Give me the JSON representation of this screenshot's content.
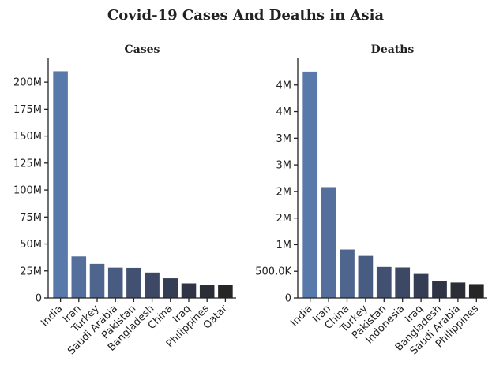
{
  "figure": {
    "title": "Covid-19 Cases And Deaths in Asia"
  },
  "chart_data": [
    {
      "type": "bar",
      "title": "Cases",
      "xlabel": "",
      "ylabel": "",
      "categories": [
        "India",
        "Iran",
        "Turkey",
        "Saudi Arabia",
        "Pakistan",
        "Bangladesh",
        "China",
        "Iraq",
        "Philippines",
        "Qatar"
      ],
      "values": [
        210000000,
        38500000,
        31500000,
        28000000,
        27800000,
        23500000,
        18200000,
        13500000,
        12000000,
        12000000
      ],
      "ylim": [
        0,
        222000000
      ],
      "yticks": [
        0,
        25000000,
        50000000,
        75000000,
        100000000,
        125000000,
        150000000,
        175000000,
        200000000
      ],
      "ytick_labels": [
        "0",
        "25M",
        "50M",
        "75M",
        "100M",
        "125M",
        "150M",
        "175M",
        "200M"
      ],
      "colors": [
        "#5a79ab",
        "#546f9c",
        "#4e658e",
        "#485b80",
        "#425172",
        "#3c4864",
        "#363e56",
        "#303447",
        "#2b2d37",
        "#262626"
      ],
      "grid": false,
      "legend": "none"
    },
    {
      "type": "bar",
      "title": "Deaths",
      "xlabel": "",
      "ylabel": "",
      "categories": [
        "India",
        "Iran",
        "China",
        "Turkey",
        "Pakistan",
        "Indonesia",
        "Iraq",
        "Bangladesh",
        "Saudi Arabia",
        "Philippines"
      ],
      "values": [
        4250000,
        2080000,
        910000,
        790000,
        580000,
        570000,
        450000,
        320000,
        290000,
        260000
      ],
      "ylim": [
        0,
        4500000
      ],
      "yticks": [
        0,
        500000,
        1000000,
        1500000,
        2000000,
        2500000,
        3000000,
        3500000,
        4000000
      ],
      "ytick_labels": [
        "0",
        "500.0K",
        "1M",
        "2M",
        "2M",
        "3M",
        "3M",
        "4M",
        "4M"
      ],
      "colors": [
        "#5a79ab",
        "#546f9c",
        "#4e658e",
        "#485b80",
        "#425172",
        "#3c4864",
        "#363e56",
        "#303447",
        "#2b2d37",
        "#262626"
      ],
      "grid": false,
      "legend": "none"
    }
  ]
}
